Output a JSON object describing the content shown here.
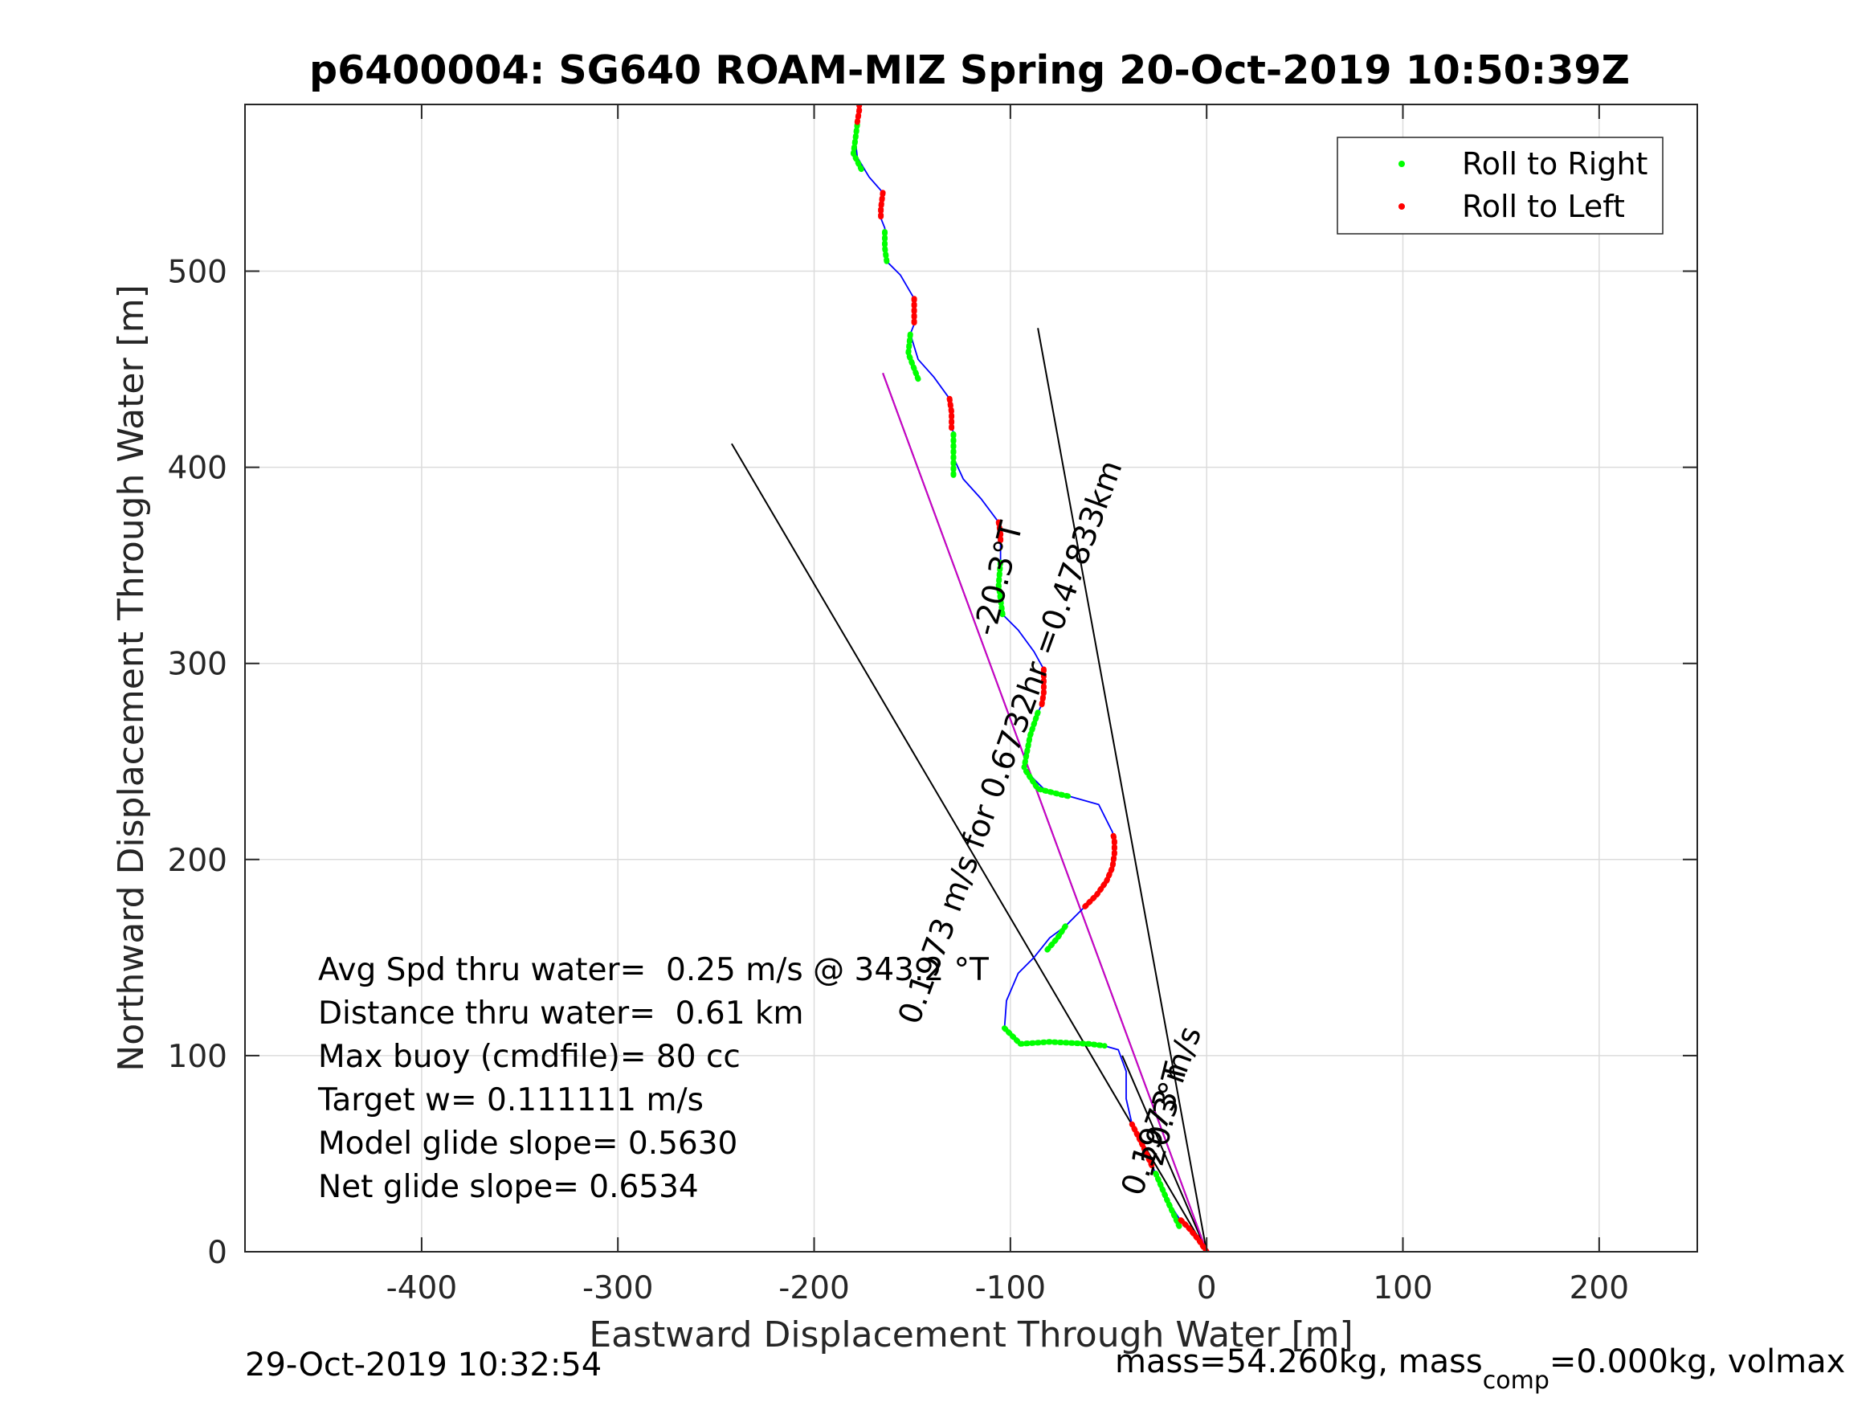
{
  "chart_data": {
    "type": "line",
    "title": "p6400004: SG640 ROAM-MIZ Spring 20-Oct-2019 10:50:39Z",
    "xlabel": "Eastward Displacement Through Water [m]",
    "ylabel": "Northward Displacement Through Water [m]",
    "xlim": [
      -490,
      250
    ],
    "ylim": [
      0,
      585
    ],
    "xticks": [
      -400,
      -300,
      -200,
      -100,
      0,
      100,
      200
    ],
    "yticks": [
      0,
      100,
      200,
      300,
      400,
      500
    ],
    "xtick_labels": [
      "-400",
      "-300",
      "-200",
      "-100",
      "0",
      "100",
      "200"
    ],
    "ytick_labels": [
      "0",
      "100",
      "200",
      "300",
      "400",
      "500"
    ],
    "grid": true,
    "legend": {
      "placement": "top-right",
      "entries": [
        {
          "label": "Roll to Right",
          "color": "#00ff00"
        },
        {
          "label": "Roll to Left",
          "color": "#ff0000"
        }
      ]
    },
    "colors": {
      "track": "#0000ff",
      "glide_line": "#cc00cc",
      "reference": "#000000",
      "roll_right": "#00ff00",
      "roll_left": "#ff0000"
    },
    "series": [
      {
        "name": "Roll to Right",
        "style": "marker-green",
        "segments": [
          [
            [
              -14,
              13
            ],
            [
              -20,
              26
            ],
            [
              -26,
              40
            ]
          ],
          [
            [
              -103,
              114
            ],
            [
              -95,
              106
            ],
            [
              -80,
              107
            ],
            [
              -60,
              106
            ],
            [
              -52,
              105
            ]
          ],
          [
            [
              -72,
              166
            ],
            [
              -76,
              160
            ],
            [
              -82,
              153
            ]
          ],
          [
            [
              -92,
              245
            ],
            [
              -86,
              236
            ],
            [
              -74,
              233
            ],
            [
              -69,
              232
            ]
          ],
          [
            [
              -86,
              275
            ],
            [
              -90,
              263
            ],
            [
              -93,
              247
            ]
          ],
          [
            [
              -104,
              325
            ],
            [
              -106,
              340
            ],
            [
              -105,
              352
            ]
          ],
          [
            [
              -129,
              396
            ],
            [
              -129,
              405
            ],
            [
              -129,
              418
            ]
          ],
          [
            [
              -147,
              445
            ],
            [
              -152,
              458
            ],
            [
              -151,
              468
            ]
          ],
          [
            [
              -163,
              505
            ],
            [
              -164,
              512
            ],
            [
              -164,
              522
            ]
          ],
          [
            [
              -176,
              552
            ],
            [
              -180,
              560
            ],
            [
              -179,
              567
            ],
            [
              -178,
              575
            ]
          ]
        ]
      },
      {
        "name": "Roll to Left",
        "style": "marker-red",
        "segments": [
          [
            [
              0,
              0
            ],
            [
              -4,
              6
            ],
            [
              -9,
              12
            ],
            [
              -14,
              17
            ]
          ],
          [
            [
              -28,
              44
            ],
            [
              -33,
              55
            ],
            [
              -38,
              65
            ]
          ],
          [
            [
              -62,
              176
            ],
            [
              -56,
              182
            ],
            [
              -51,
              189
            ],
            [
              -48,
              196
            ],
            [
              -47,
              203
            ],
            [
              -47,
              210
            ],
            [
              -48,
              214
            ]
          ],
          [
            [
              -83,
              297
            ],
            [
              -83,
              292
            ],
            [
              -83,
              285
            ],
            [
              -84,
              279
            ]
          ],
          [
            [
              -106,
              372
            ],
            [
              -105,
              366
            ],
            [
              -105,
              361
            ]
          ],
          [
            [
              -131,
              435
            ],
            [
              -130,
              428
            ],
            [
              -130,
              420
            ]
          ],
          [
            [
              -149,
              486
            ],
            [
              -149,
              480
            ],
            [
              -149,
              473
            ]
          ],
          [
            [
              -165,
              540
            ],
            [
              -166,
              532
            ],
            [
              -166,
              527
            ]
          ],
          [
            [
              -177,
              588
            ],
            [
              -177,
              582
            ],
            [
              -178,
              576
            ]
          ]
        ]
      },
      {
        "name": "",
        "style": "track-blue",
        "points": [
          [
            0,
            0
          ],
          [
            -7,
            9
          ],
          [
            -14,
            17
          ],
          [
            -20,
            26
          ],
          [
            -26,
            40
          ],
          [
            -33,
            55
          ],
          [
            -38,
            65
          ],
          [
            -41,
            78
          ],
          [
            -41,
            92
          ],
          [
            -45,
            103
          ],
          [
            -52,
            105
          ],
          [
            -65,
            107
          ],
          [
            -80,
            107
          ],
          [
            -95,
            106
          ],
          [
            -103,
            114
          ],
          [
            -102,
            128
          ],
          [
            -96,
            142
          ],
          [
            -88,
            150
          ],
          [
            -80,
            160
          ],
          [
            -72,
            166
          ],
          [
            -66,
            172
          ],
          [
            -62,
            176
          ],
          [
            -56,
            182
          ],
          [
            -51,
            189
          ],
          [
            -48,
            196
          ],
          [
            -47,
            203
          ],
          [
            -47,
            210
          ],
          [
            -48,
            214
          ],
          [
            -55,
            228
          ],
          [
            -69,
            232
          ],
          [
            -81,
            234
          ],
          [
            -92,
            245
          ],
          [
            -93,
            253
          ],
          [
            -90,
            263
          ],
          [
            -86,
            275
          ],
          [
            -84,
            279
          ],
          [
            -83,
            285
          ],
          [
            -83,
            292
          ],
          [
            -83,
            297
          ],
          [
            -88,
            306
          ],
          [
            -96,
            317
          ],
          [
            -104,
            325
          ],
          [
            -106,
            340
          ],
          [
            -105,
            352
          ],
          [
            -105,
            361
          ],
          [
            -106,
            372
          ],
          [
            -115,
            384
          ],
          [
            -124,
            394
          ],
          [
            -129,
            405
          ],
          [
            -129,
            418
          ],
          [
            -130,
            420
          ],
          [
            -130,
            428
          ],
          [
            -131,
            435
          ],
          [
            -139,
            446
          ],
          [
            -147,
            455
          ],
          [
            -151,
            468
          ],
          [
            -149,
            473
          ],
          [
            -149,
            480
          ],
          [
            -149,
            486
          ],
          [
            -156,
            498
          ],
          [
            -163,
            505
          ],
          [
            -164,
            522
          ],
          [
            -166,
            527
          ],
          [
            -166,
            532
          ],
          [
            -165,
            540
          ],
          [
            -172,
            548
          ],
          [
            -178,
            558
          ],
          [
            -179,
            567
          ],
          [
            -178,
            576
          ],
          [
            -177,
            582
          ],
          [
            -177,
            588
          ]
        ]
      },
      {
        "name": "",
        "style": "glide-magenta",
        "points": [
          [
            0,
            0
          ],
          [
            -165,
            448
          ]
        ]
      },
      {
        "name": "",
        "style": "reference-black",
        "lines": [
          [
            [
              0,
              0
            ],
            [
              -242,
              412
            ]
          ],
          [
            [
              0,
              0
            ],
            [
              -86,
              471
            ]
          ],
          [
            [
              0,
              0
            ],
            [
              -165,
              448
            ]
          ],
          [
            [
              0,
              0
            ],
            [
              -43,
              100
            ]
          ]
        ]
      }
    ],
    "line_labels": [
      {
        "text": "-20.3°T",
        "x": -101,
        "y": 342,
        "angle_deg": -76
      },
      {
        "text": "0.1973 m/s for 0.6732hr =0.47833km",
        "x": -95,
        "y": 258,
        "angle_deg": -70
      },
      {
        "text": "0.1973 m/s",
        "x": -18,
        "y": 70,
        "angle_deg": -70
      },
      {
        "text": "-20.3°T",
        "x": -17,
        "y": 66,
        "angle_deg": -76
      }
    ],
    "annotations": [
      "Avg Spd thru water=  0.25 m/s @ 343.2 °T",
      "Distance thru water=  0.61 km",
      "Max buoy (cmdfile)= 80 cc",
      "Target w= 0.111111 m/s",
      "Model glide slope= 0.5630",
      "Net glide slope= 0.6534"
    ]
  },
  "footer": {
    "timestamp": "29-Oct-2019 10:32:54",
    "mass_text_a": "mass=54.260kg, mass",
    "mass_sub": "comp",
    "mass_text_b": "=0.000kg, volmax"
  }
}
